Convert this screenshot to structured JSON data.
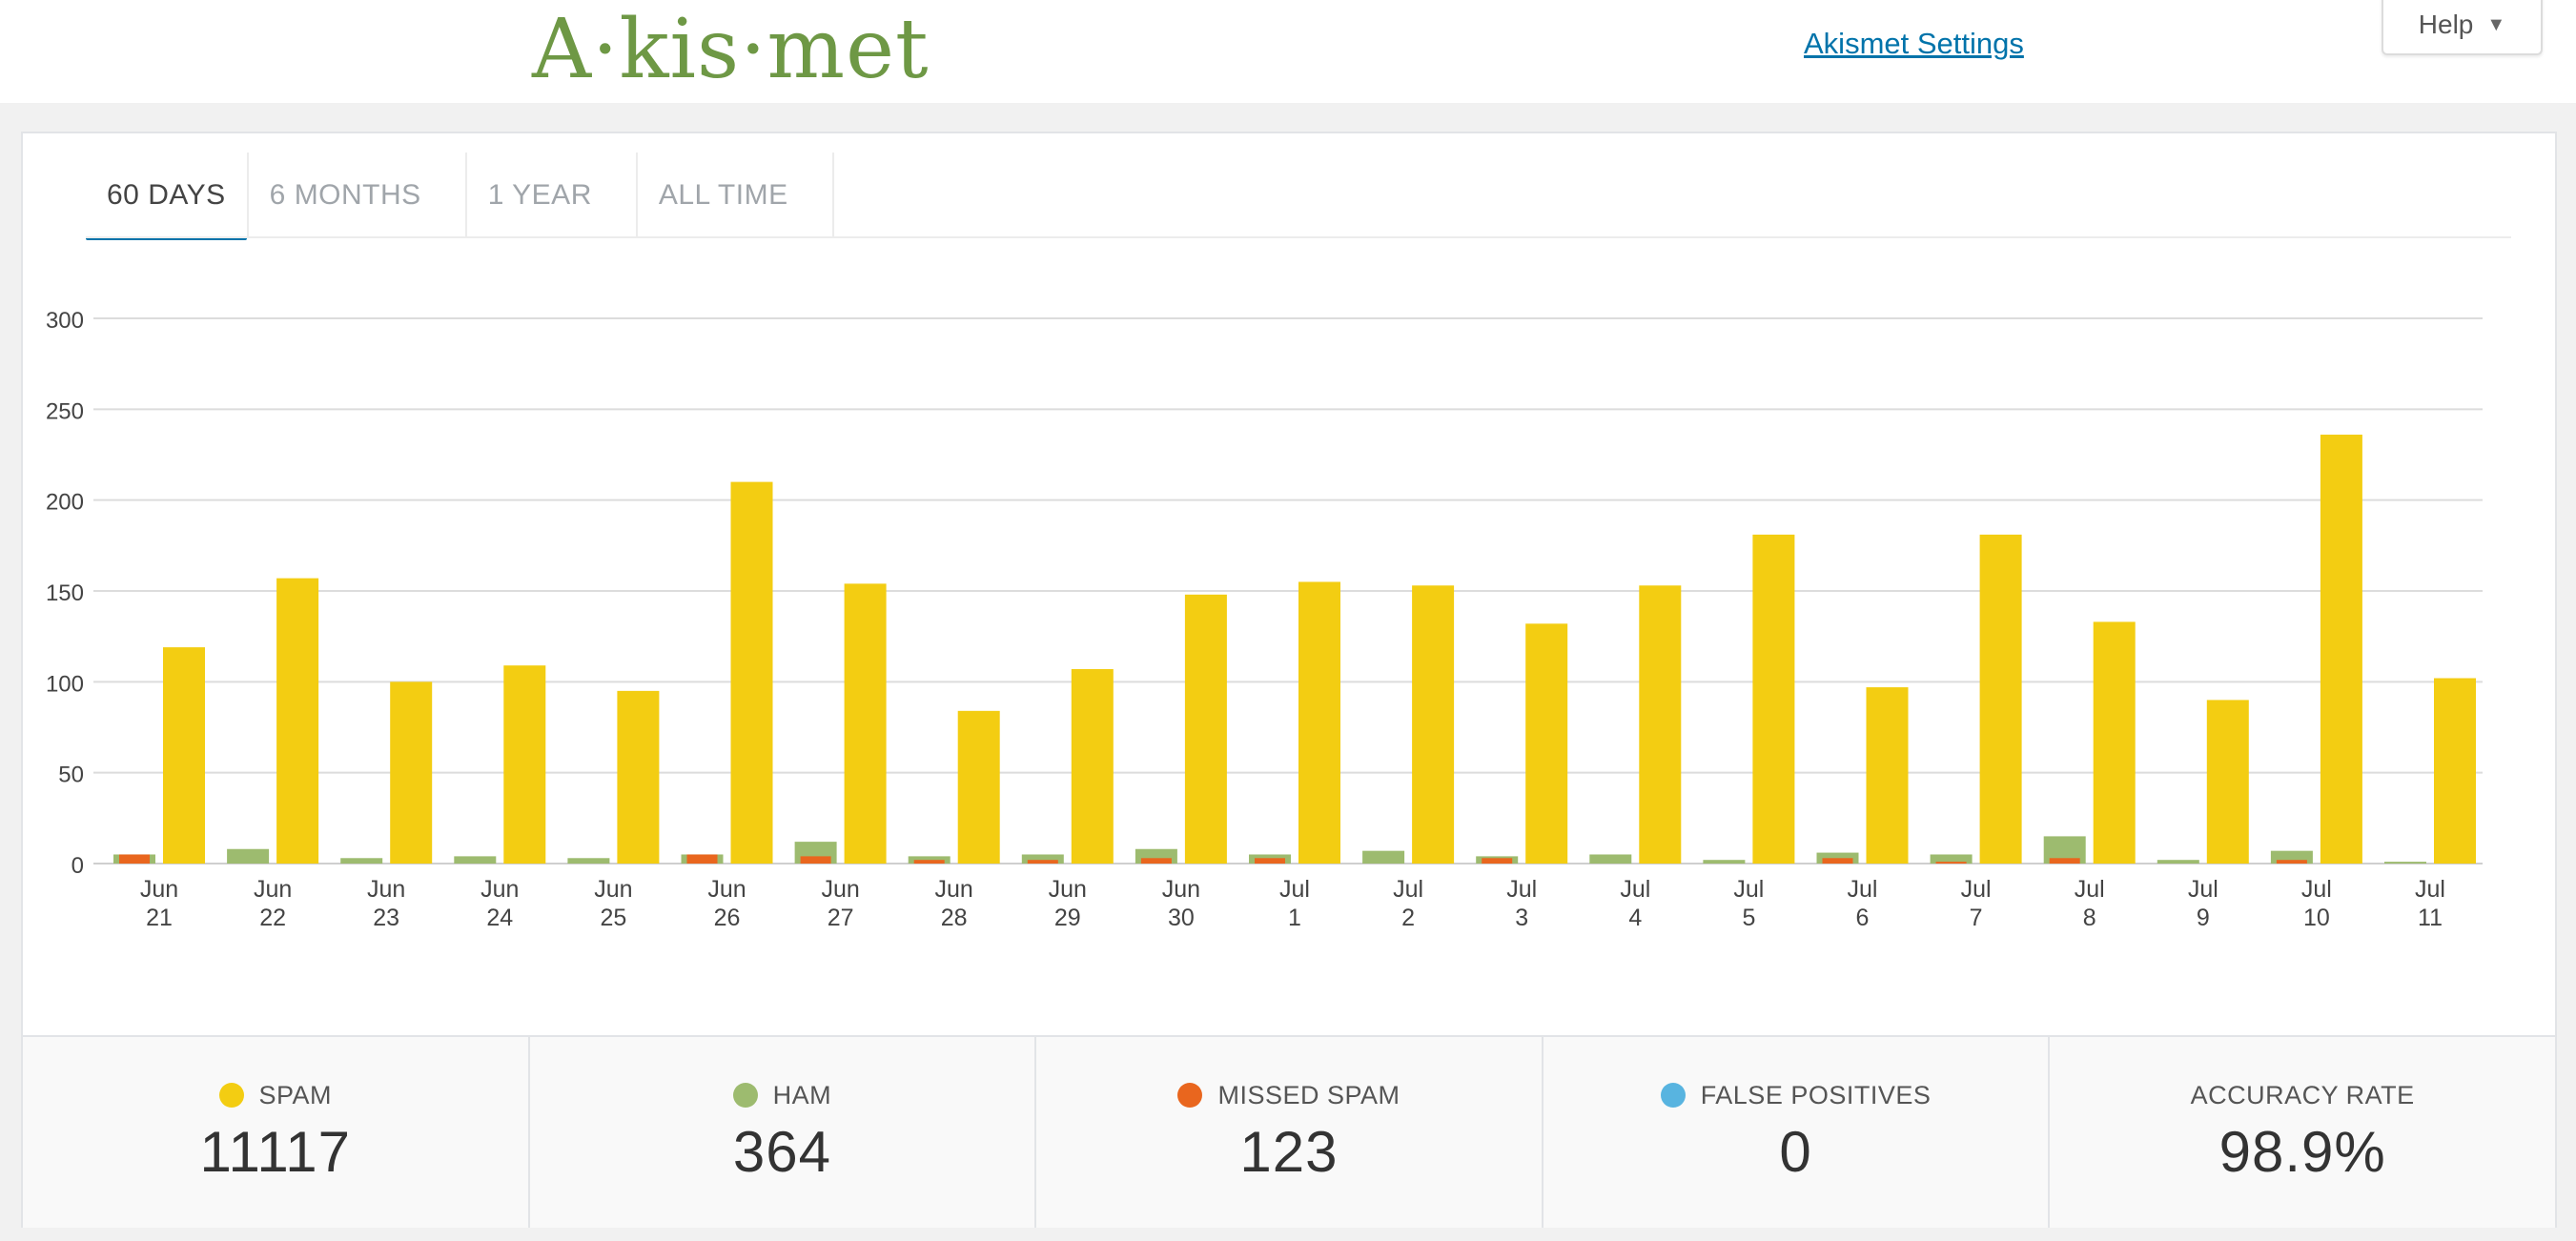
{
  "header": {
    "logo": "A·kis·met",
    "settings_link": "Akismet Settings",
    "help_label": "Help",
    "help_arrow": "▼"
  },
  "tabs": [
    {
      "label": "60 DAYS",
      "active": true
    },
    {
      "label": "6 MONTHS",
      "active": false
    },
    {
      "label": "1 YEAR",
      "active": false
    },
    {
      "label": "ALL TIME",
      "active": false
    }
  ],
  "colors": {
    "spam": "#f3cd12",
    "ham": "#9dbb6f",
    "missed_spam": "#e9661e",
    "false_positives": "#58b4e0"
  },
  "chart_data": {
    "type": "bar",
    "categories": [
      [
        "Jun",
        "21"
      ],
      [
        "Jun",
        "22"
      ],
      [
        "Jun",
        "23"
      ],
      [
        "Jun",
        "24"
      ],
      [
        "Jun",
        "25"
      ],
      [
        "Jun",
        "26"
      ],
      [
        "Jun",
        "27"
      ],
      [
        "Jun",
        "28"
      ],
      [
        "Jun",
        "29"
      ],
      [
        "Jun",
        "30"
      ],
      [
        "Jul",
        "1"
      ],
      [
        "Jul",
        "2"
      ],
      [
        "Jul",
        "3"
      ],
      [
        "Jul",
        "4"
      ],
      [
        "Jul",
        "5"
      ],
      [
        "Jul",
        "6"
      ],
      [
        "Jul",
        "7"
      ],
      [
        "Jul",
        "8"
      ],
      [
        "Jul",
        "9"
      ],
      [
        "Jul",
        "10"
      ],
      [
        "Jul",
        "11"
      ]
    ],
    "yticks": [
      0,
      50,
      100,
      150,
      200,
      250,
      300
    ],
    "ylim": [
      0,
      300
    ],
    "grid": true,
    "series": [
      {
        "key": "ham",
        "values": [
          5,
          8,
          3,
          4,
          3,
          5,
          12,
          4,
          5,
          8,
          5,
          7,
          4,
          5,
          2,
          6,
          5,
          15,
          2,
          7,
          1
        ]
      },
      {
        "key": "missed_spam",
        "values": [
          5,
          0,
          0,
          0,
          0,
          5,
          4,
          2,
          2,
          3,
          3,
          0,
          3,
          0,
          0,
          3,
          1,
          3,
          0,
          2,
          0
        ]
      },
      {
        "key": "spam",
        "values": [
          119,
          157,
          100,
          109,
          95,
          210,
          154,
          84,
          107,
          148,
          155,
          153,
          132,
          153,
          181,
          97,
          181,
          133,
          90,
          236,
          102
        ]
      }
    ]
  },
  "stats": [
    {
      "key": "spam",
      "label": "SPAM",
      "value": "11117",
      "color": "#f3cd12"
    },
    {
      "key": "ham",
      "label": "HAM",
      "value": "364",
      "color": "#9dbb6f"
    },
    {
      "key": "missed_spam",
      "label": "MISSED SPAM",
      "value": "123",
      "color": "#e9661e"
    },
    {
      "key": "false_positives",
      "label": "FALSE POSITIVES",
      "value": "0",
      "color": "#58b4e0"
    },
    {
      "key": "accuracy",
      "label": "ACCURACY RATE",
      "value": "98.9%",
      "color": ""
    }
  ]
}
